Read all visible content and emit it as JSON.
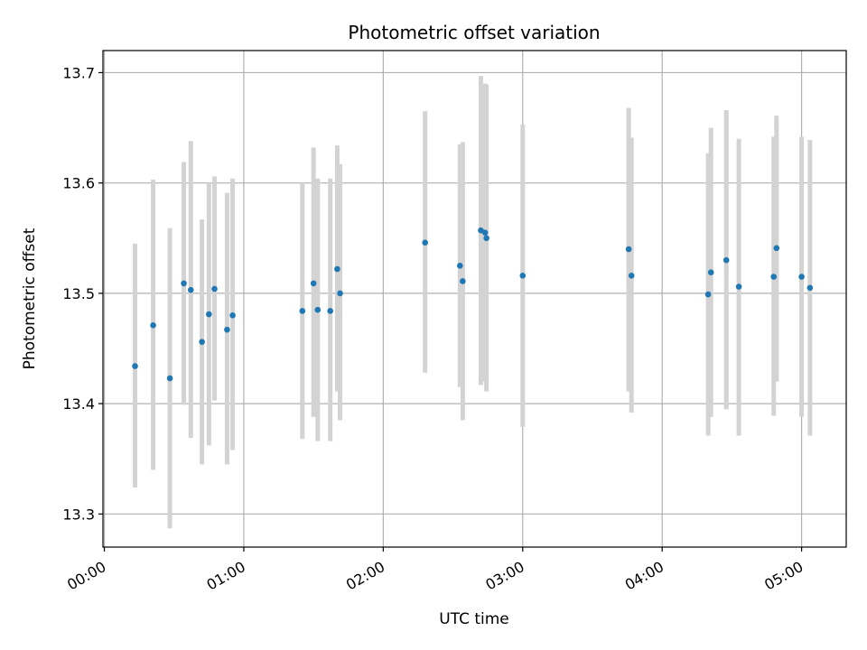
{
  "chart_data": {
    "type": "scatter",
    "title": "Photometric offset variation",
    "xlabel": "UTC time",
    "ylabel": "Photometric offset",
    "x_unit": "hours",
    "xlim": [
      -0.01,
      5.32
    ],
    "ylim": [
      13.27,
      13.72
    ],
    "x_ticks": [
      0,
      1,
      2,
      3,
      4,
      5
    ],
    "x_tick_labels": [
      "00:00",
      "01:00",
      "02:00",
      "03:00",
      "04:00",
      "05:00"
    ],
    "y_ticks": [
      13.3,
      13.4,
      13.5,
      13.6,
      13.7
    ],
    "y_tick_labels": [
      "13.3",
      "13.4",
      "13.5",
      "13.6",
      "13.7"
    ],
    "grid": true,
    "colors": {
      "point": "#1f77b4",
      "errorbar": "#d3d3d3",
      "grid": "#b0b0b0",
      "axis": "#000000"
    },
    "points": [
      {
        "x": 0.22,
        "y": 13.434,
        "ylow": 13.324,
        "yhigh": 13.545
      },
      {
        "x": 0.35,
        "y": 13.471,
        "ylow": 13.34,
        "yhigh": 13.603
      },
      {
        "x": 0.47,
        "y": 13.423,
        "ylow": 13.287,
        "yhigh": 13.559
      },
      {
        "x": 0.57,
        "y": 13.509,
        "ylow": 13.399,
        "yhigh": 13.619
      },
      {
        "x": 0.62,
        "y": 13.503,
        "ylow": 13.369,
        "yhigh": 13.638
      },
      {
        "x": 0.7,
        "y": 13.456,
        "ylow": 13.345,
        "yhigh": 13.567
      },
      {
        "x": 0.75,
        "y": 13.481,
        "ylow": 13.362,
        "yhigh": 13.6
      },
      {
        "x": 0.79,
        "y": 13.504,
        "ylow": 13.403,
        "yhigh": 13.606
      },
      {
        "x": 0.88,
        "y": 13.467,
        "ylow": 13.345,
        "yhigh": 13.591
      },
      {
        "x": 0.92,
        "y": 13.48,
        "ylow": 13.358,
        "yhigh": 13.604
      },
      {
        "x": 1.42,
        "y": 13.484,
        "ylow": 13.368,
        "yhigh": 13.6
      },
      {
        "x": 1.5,
        "y": 13.509,
        "ylow": 13.388,
        "yhigh": 13.632
      },
      {
        "x": 1.53,
        "y": 13.485,
        "ylow": 13.366,
        "yhigh": 13.604
      },
      {
        "x": 1.62,
        "y": 13.484,
        "ylow": 13.366,
        "yhigh": 13.604
      },
      {
        "x": 1.67,
        "y": 13.522,
        "ylow": 13.411,
        "yhigh": 13.634
      },
      {
        "x": 1.69,
        "y": 13.5,
        "ylow": 13.385,
        "yhigh": 13.617
      },
      {
        "x": 2.3,
        "y": 13.546,
        "ylow": 13.428,
        "yhigh": 13.665
      },
      {
        "x": 2.55,
        "y": 13.525,
        "ylow": 13.415,
        "yhigh": 13.635
      },
      {
        "x": 2.57,
        "y": 13.511,
        "ylow": 13.385,
        "yhigh": 13.637
      },
      {
        "x": 2.7,
        "y": 13.557,
        "ylow": 13.417,
        "yhigh": 13.697
      },
      {
        "x": 2.73,
        "y": 13.555,
        "ylow": 13.42,
        "yhigh": 13.69
      },
      {
        "x": 2.74,
        "y": 13.55,
        "ylow": 13.411,
        "yhigh": 13.689
      },
      {
        "x": 3.0,
        "y": 13.516,
        "ylow": 13.379,
        "yhigh": 13.653
      },
      {
        "x": 3.76,
        "y": 13.54,
        "ylow": 13.411,
        "yhigh": 13.668
      },
      {
        "x": 3.78,
        "y": 13.516,
        "ylow": 13.392,
        "yhigh": 13.641
      },
      {
        "x": 4.33,
        "y": 13.499,
        "ylow": 13.371,
        "yhigh": 13.627
      },
      {
        "x": 4.35,
        "y": 13.519,
        "ylow": 13.388,
        "yhigh": 13.65
      },
      {
        "x": 4.46,
        "y": 13.53,
        "ylow": 13.395,
        "yhigh": 13.666
      },
      {
        "x": 4.55,
        "y": 13.506,
        "ylow": 13.371,
        "yhigh": 13.64
      },
      {
        "x": 4.8,
        "y": 13.515,
        "ylow": 13.389,
        "yhigh": 13.642
      },
      {
        "x": 4.82,
        "y": 13.541,
        "ylow": 13.42,
        "yhigh": 13.661
      },
      {
        "x": 5.0,
        "y": 13.515,
        "ylow": 13.388,
        "yhigh": 13.642
      },
      {
        "x": 5.06,
        "y": 13.505,
        "ylow": 13.371,
        "yhigh": 13.639
      }
    ]
  }
}
